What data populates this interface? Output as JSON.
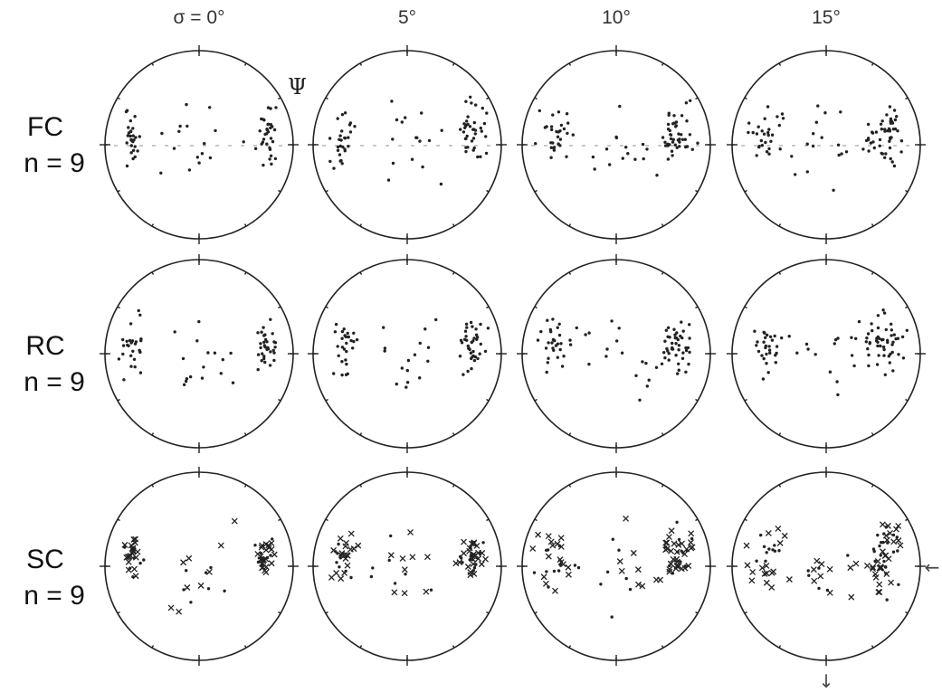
{
  "columns": [
    "σ = 0°",
    "5°",
    "10°",
    "15°"
  ],
  "rows": [
    {
      "name": "FC",
      "n": "n = 9"
    },
    {
      "name": "RC",
      "n": "n = 9"
    },
    {
      "name": "SC",
      "n": "n = 9"
    }
  ],
  "axis_symbol": "Ψ",
  "arrow_right": "←",
  "arrow_down": "↓",
  "colors": {
    "ink": "#222222",
    "background": "#ffffff"
  },
  "marker_types": [
    "dot",
    "cross"
  ]
}
